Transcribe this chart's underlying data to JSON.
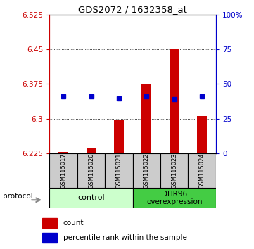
{
  "title": "GDS2072 / 1632358_at",
  "samples": [
    "GSM115017",
    "GSM115020",
    "GSM115021",
    "GSM115022",
    "GSM115023",
    "GSM115024"
  ],
  "bar_base": 6.225,
  "bar_tops": [
    6.227,
    6.237,
    6.298,
    6.375,
    6.45,
    6.306
  ],
  "blue_dots": [
    6.348,
    6.348,
    6.344,
    6.348,
    6.342,
    6.348
  ],
  "ylim": [
    6.225,
    6.525
  ],
  "yticks_left": [
    6.225,
    6.3,
    6.375,
    6.45,
    6.525
  ],
  "yticks_right_vals": [
    0,
    25,
    50,
    75,
    100
  ],
  "yticks_right_labels": [
    "0",
    "25",
    "50",
    "75",
    "100%"
  ],
  "bar_color": "#cc0000",
  "dot_color": "#0000cc",
  "control_label": "control",
  "overexp_label": "DHR96\noverexpression",
  "protocol_label": "protocol",
  "legend_bar_label": "count",
  "legend_dot_label": "percentile rank within the sample",
  "control_color": "#ccffcc",
  "overexp_color": "#44cc44",
  "sample_box_color": "#cccccc",
  "left_axis_color": "#cc0000",
  "right_axis_color": "#0000cc"
}
